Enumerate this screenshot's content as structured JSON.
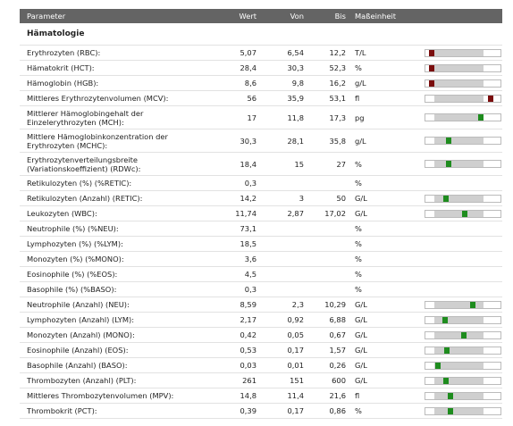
{
  "header": {
    "columns": [
      "Parameter",
      "Wert",
      "Von",
      "Bis",
      "Maßeinheit"
    ]
  },
  "section": {
    "title": "Hämatologie"
  },
  "table": {
    "rows": [
      {
        "parameter": [
          "Erythrozyten (RBC):"
        ],
        "wert": "5,07",
        "von": "6,54",
        "bis": "12,2",
        "einheit": "T/L"
      },
      {
        "parameter": [
          "Hämatokrit (HCT):"
        ],
        "wert": "28,4",
        "von": "30,3",
        "bis": "52,3",
        "einheit": "%"
      },
      {
        "parameter": [
          "Hämoglobin (HGB):"
        ],
        "wert": "8,6",
        "von": "9,8",
        "bis": "16,2",
        "einheit": "g/L"
      },
      {
        "parameter": [
          "Mittleres Erythrozytenvolumen (MCV):"
        ],
        "wert": "56",
        "von": "35,9",
        "bis": "53,1",
        "einheit": "fl"
      },
      {
        "parameter": [
          "Mittlerer Hämoglobingehalt der",
          "Einzelerythrozyten (MCH):"
        ],
        "wert": "17",
        "von": "11,8",
        "bis": "17,3",
        "einheit": "pg"
      },
      {
        "parameter": [
          "Mittlere Hämoglobinkonzentration der",
          "Erythrozyten (MCHC):"
        ],
        "wert": "30,3",
        "von": "28,1",
        "bis": "35,8",
        "einheit": "g/L"
      },
      {
        "parameter": [
          "Erythrozytenverteilungsbreite",
          "(Variationskoeffizient) (RDWc):"
        ],
        "wert": "18,4",
        "von": "15",
        "bis": "27",
        "einheit": "%"
      },
      {
        "parameter": [
          "Retikulozyten (%) (%RETIC):"
        ],
        "wert": "0,3",
        "einheit": "%"
      },
      {
        "parameter": [
          "Retikulozyten (Anzahl) (RETIC):"
        ],
        "wert": "14,2",
        "von": "3",
        "bis": "50",
        "einheit": "G/L"
      },
      {
        "parameter": [
          "Leukozyten (WBC):"
        ],
        "wert": "11,74",
        "von": "2,87",
        "bis": "17,02",
        "einheit": "G/L"
      },
      {
        "parameter": [
          "Neutrophile (%) (%NEU):"
        ],
        "wert": "73,1",
        "einheit": "%"
      },
      {
        "parameter": [
          "Lymphozyten (%) (%LYM):"
        ],
        "wert": "18,5",
        "einheit": "%"
      },
      {
        "parameter": [
          "Monozyten (%) (%MONO):"
        ],
        "wert": "3,6",
        "einheit": "%"
      },
      {
        "parameter": [
          "Eosinophile (%) (%EOS):"
        ],
        "wert": "4,5",
        "einheit": "%"
      },
      {
        "parameter": [
          "Basophile (%) (%BASO):"
        ],
        "wert": "0,3",
        "einheit": "%"
      },
      {
        "parameter": [
          "Neutrophile (Anzahl) (NEU):"
        ],
        "wert": "8,59",
        "von": "2,3",
        "bis": "10,29",
        "einheit": "G/L"
      },
      {
        "parameter": [
          "Lymphozyten (Anzahl) (LYM):"
        ],
        "wert": "2,17",
        "von": "0,92",
        "bis": "6,88",
        "einheit": "G/L"
      },
      {
        "parameter": [
          "Monozyten (Anzahl) (MONO):"
        ],
        "wert": "0,42",
        "von": "0,05",
        "bis": "0,67",
        "einheit": "G/L"
      },
      {
        "parameter": [
          "Eosinophile (Anzahl) (EOS):"
        ],
        "wert": "0,53",
        "von": "0,17",
        "bis": "1,57",
        "einheit": "G/L"
      },
      {
        "parameter": [
          "Basophile (Anzahl) (BASO):"
        ],
        "wert": "0,03",
        "von": "0,01",
        "bis": "0,26",
        "einheit": "G/L"
      },
      {
        "parameter": [
          "Thrombozyten (Anzahl) (PLT):"
        ],
        "wert": "261",
        "von": "151",
        "bis": "600",
        "einheit": "G/L"
      },
      {
        "parameter": [
          "Mittleres Thrombozytenvolumen (MPV):"
        ],
        "wert": "14,8",
        "von": "11,4",
        "bis": "21,6",
        "einheit": "fl"
      },
      {
        "parameter": [
          "Thrombokrit (PCT):"
        ],
        "wert": "0,39",
        "von": "0,17",
        "bis": "0,86",
        "einheit": "%"
      }
    ]
  }
}
